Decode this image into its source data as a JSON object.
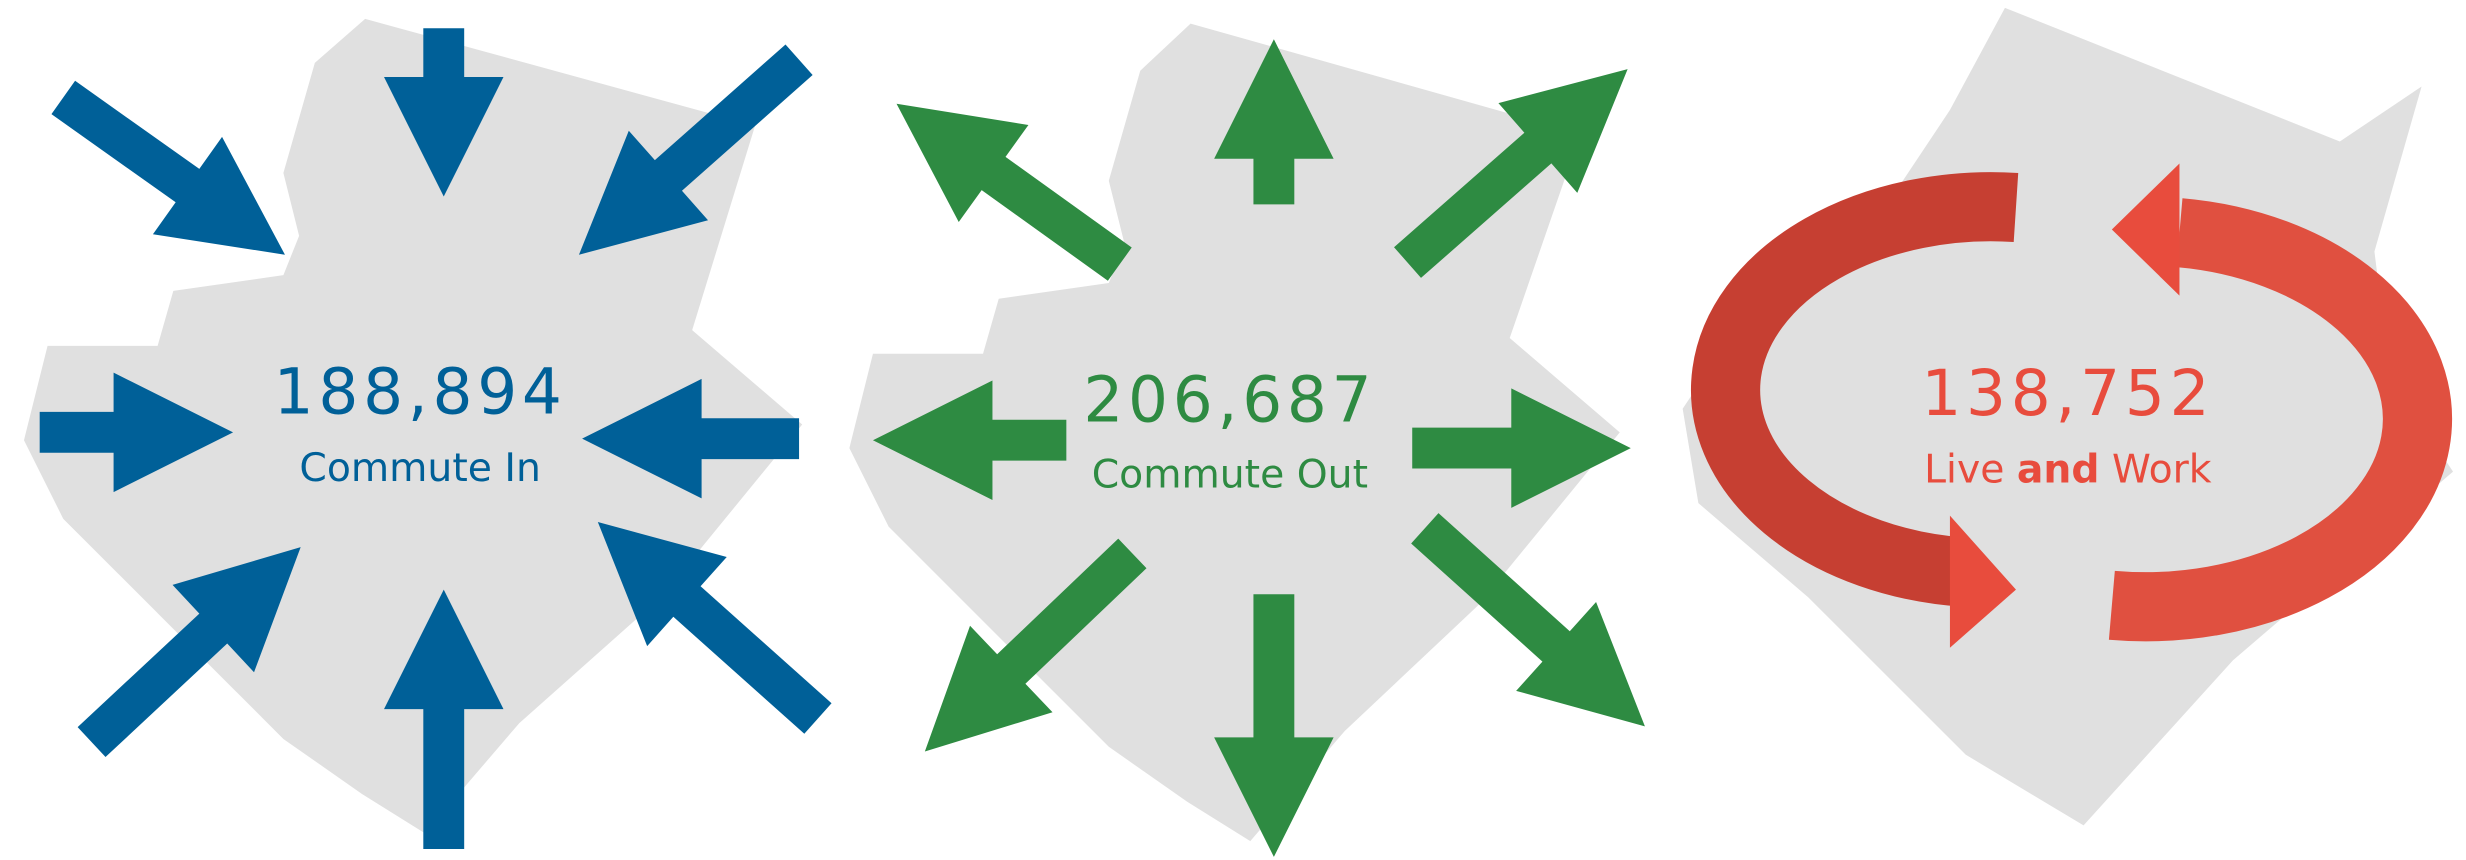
{
  "panels": [
    {
      "value": "188,894",
      "label": [
        "Commute In"
      ]
    },
    {
      "value": "206,687",
      "label": [
        "Commute Out"
      ]
    },
    {
      "value": "138,752",
      "label": [
        "Live",
        "and",
        "Work"
      ]
    }
  ]
}
